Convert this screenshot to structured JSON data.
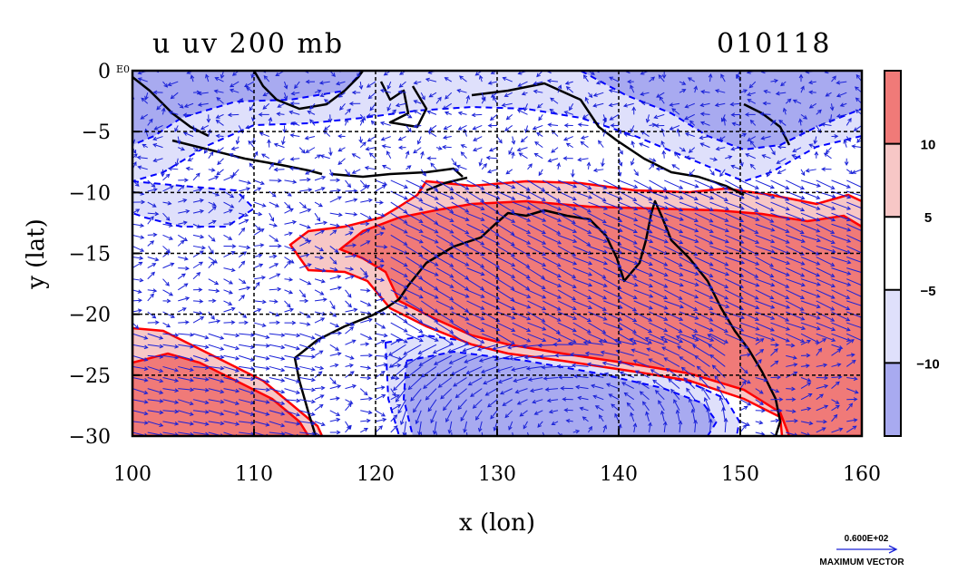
{
  "chart_data": {
    "type": "heatmap",
    "title_left": "u uv 200 mb",
    "title_right": "010118",
    "xlabel": "x (lon)",
    "ylabel": "y (lat)",
    "xlim": [
      100,
      160
    ],
    "ylim": [
      -30,
      0
    ],
    "x_ticks": [
      100,
      110,
      120,
      130,
      140,
      150,
      160
    ],
    "y_ticks": [
      0,
      -5,
      -10,
      -15,
      -20,
      -25,
      -30
    ],
    "x_tick_labels": [
      "100",
      "110",
      "120",
      "130",
      "140",
      "150",
      "160"
    ],
    "y_tick_labels": [
      "0",
      "−5",
      "−10",
      "−15",
      "−20",
      "−25",
      "−30"
    ],
    "corner_label": "E0",
    "grid": true,
    "contour_levels": [
      -10,
      -5,
      5,
      10
    ],
    "colorbar": {
      "labels": [
        "10",
        "5",
        "−5",
        "−10"
      ],
      "bands": [
        {
          "range": ">10",
          "color": "#f07a78"
        },
        {
          "range": "5 to 10",
          "color": "#f7c7c6"
        },
        {
          "range": "-5 to 5",
          "color": "#ffffff"
        },
        {
          "range": "-10 to -5",
          "color": "#dfe0fb"
        },
        {
          "range": "<-10",
          "color": "#a8aaf0"
        }
      ]
    },
    "vector_legend": {
      "value": "0.600E+02",
      "label": "MAXIMUM VECTOR"
    }
  },
  "colors": {
    "strong_neg": "#a8aaf0",
    "weak_neg": "#dfe0fb",
    "weak_pos": "#f7c7c6",
    "strong_pos": "#f07a78",
    "pos_contour": "#ff0000",
    "neg_contour": "#0000ff",
    "vector": "#1a22d8",
    "coast": "#000000"
  }
}
